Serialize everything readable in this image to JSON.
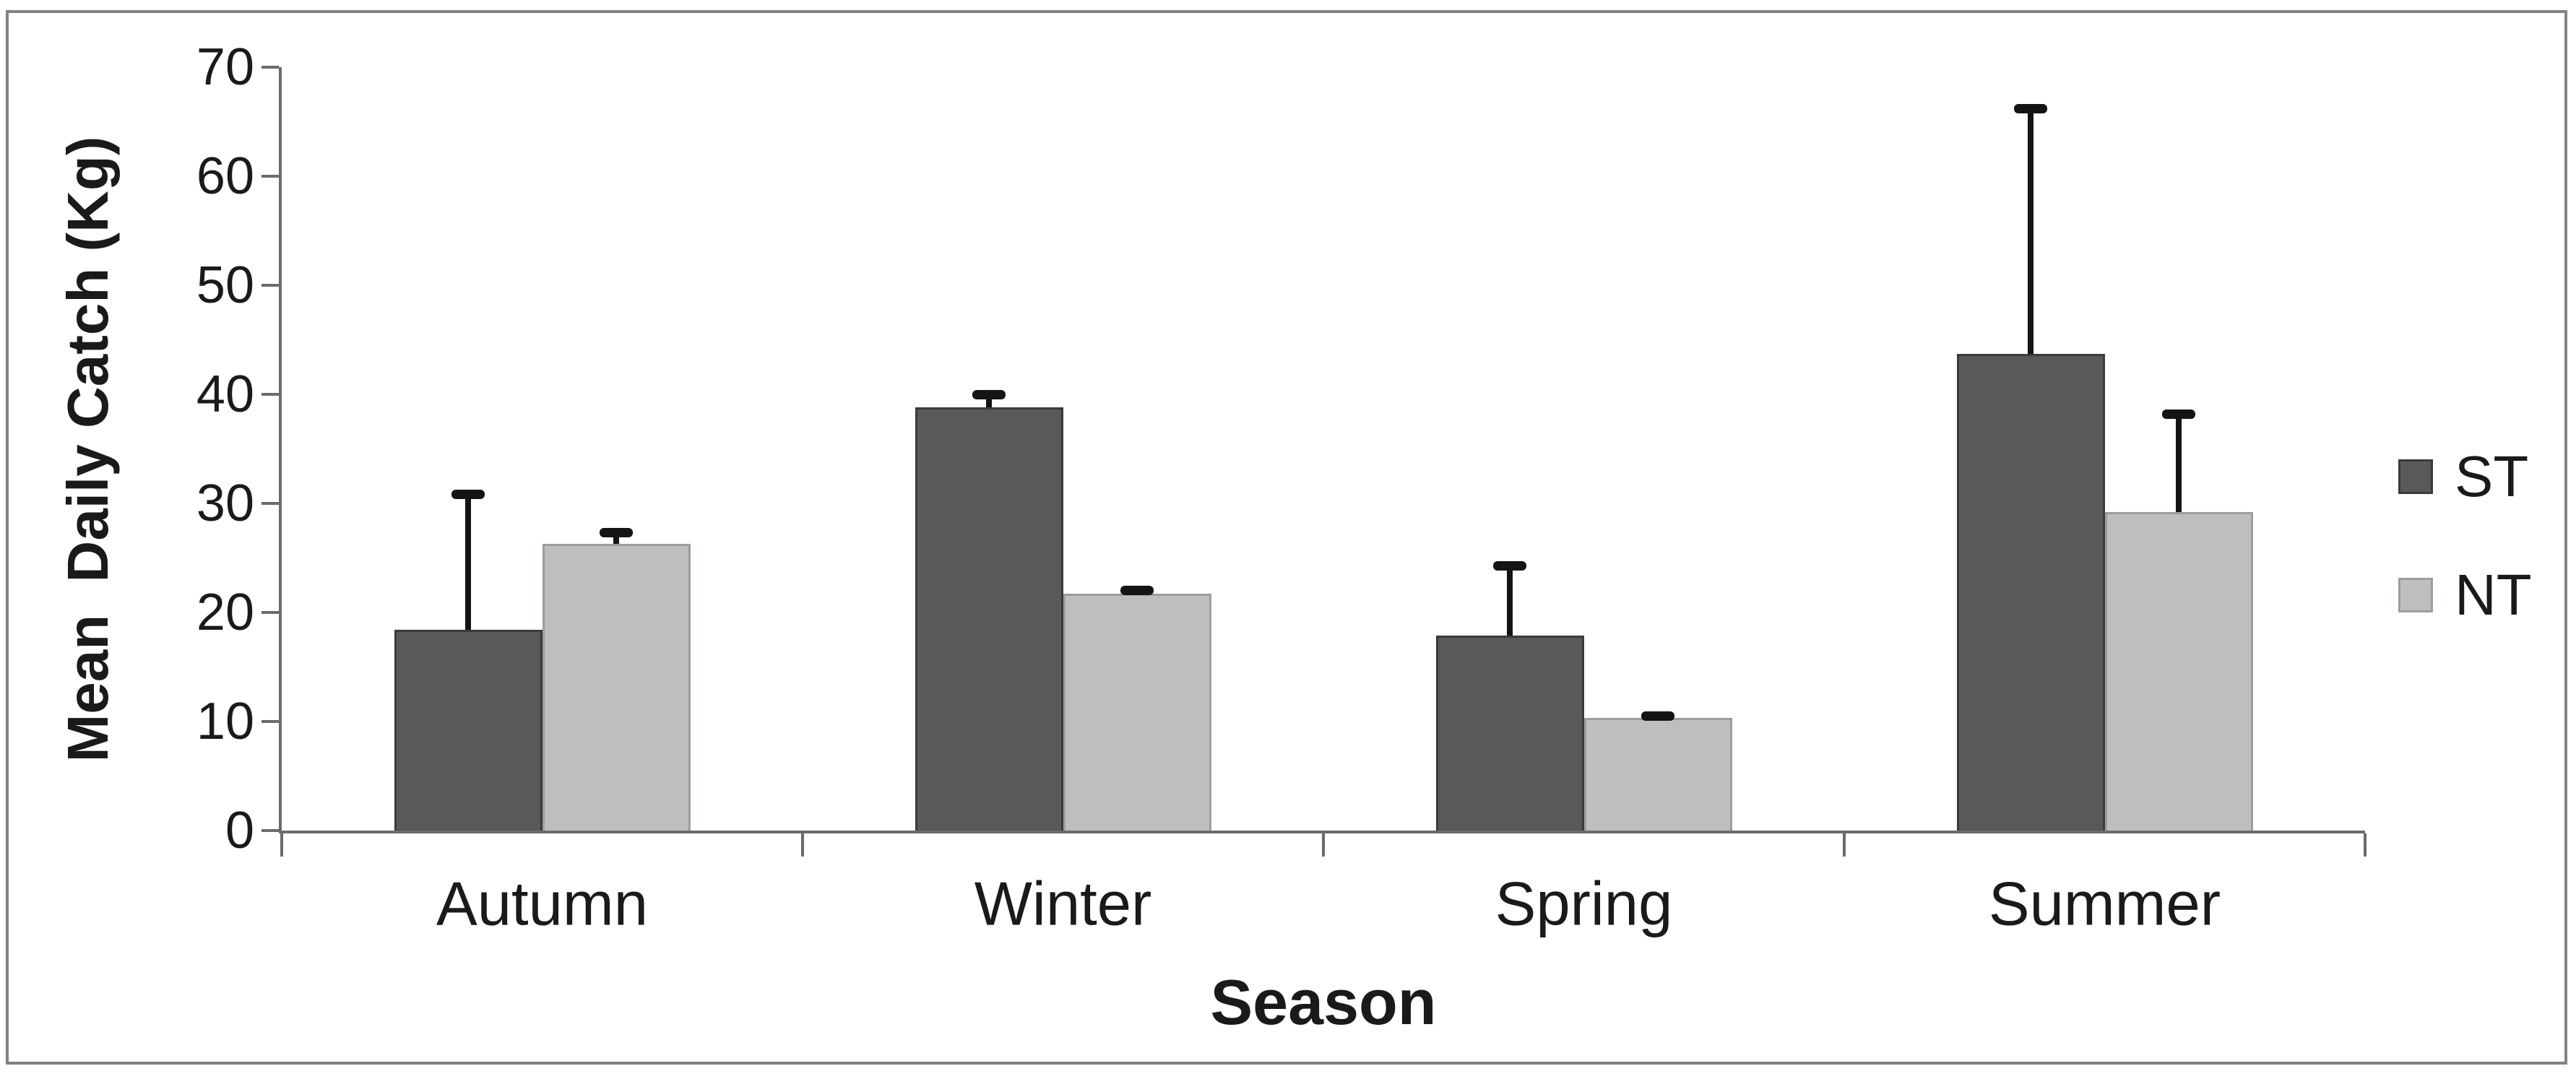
{
  "chart_data": {
    "type": "bar",
    "title": "",
    "xlabel": "Season",
    "ylabel": "Mean  Daily Catch (Kg)",
    "categories": [
      "Autumn",
      "Winter",
      "Spring",
      "Summer"
    ],
    "series": [
      {
        "name": "ST",
        "color": "#595959",
        "border_color": "#3a3a3a",
        "values": [
          18.4,
          38.8,
          17.9,
          43.7
        ],
        "errors_upper": [
          12.4,
          1.2,
          6.4,
          22.5
        ]
      },
      {
        "name": "NT",
        "color": "#bdbfbe",
        "border_color": "#9c9e9d",
        "values": [
          26.3,
          21.7,
          10.3,
          29.2
        ],
        "errors_upper": [
          1.0,
          0.3,
          0.2,
          9.0
        ]
      }
    ],
    "ylim": [
      0,
      70
    ],
    "ytick_step": 10,
    "yticks": [
      "0",
      "10",
      "20",
      "30",
      "40",
      "50",
      "60",
      "70"
    ],
    "grid": false,
    "legend_position": "right",
    "error_bar_color": "#141414"
  },
  "colors": {
    "axis": "#6b6b6b",
    "frame": "#828282",
    "text": "#1a1a1a"
  }
}
